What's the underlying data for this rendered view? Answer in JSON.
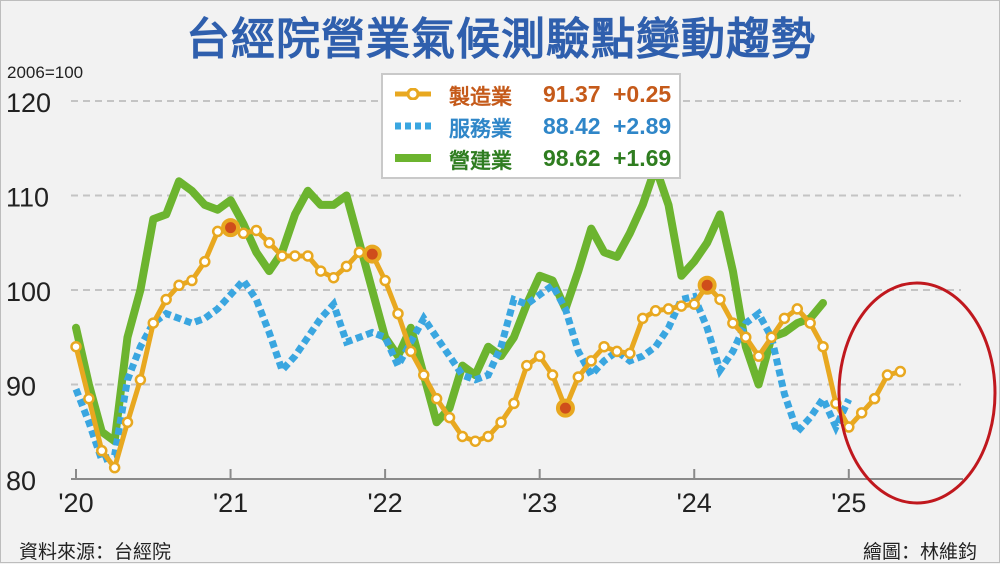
{
  "title": "台經院營業氣候測驗點變動趨勢",
  "base_note": "2006=100",
  "source": "資料來源：台經院",
  "credit": "繪圖：林維鈞",
  "colors": {
    "manufacturing": "#e8a820",
    "manufacturing_marker": "#cf4d1b",
    "services": "#3aa6e0",
    "construction": "#6cb42f",
    "grid": "#c4c4c4",
    "highlight_circle": "#c0181e",
    "mfg_text": "#c55a1a",
    "svc_text": "#2f86c8",
    "con_text": "#2f7d20"
  },
  "legend": [
    {
      "name": "製造業",
      "value": "91.37",
      "change": "+0.25"
    },
    {
      "name": "服務業",
      "value": "88.42",
      "change": "+2.89"
    },
    {
      "name": "營建業",
      "value": "98.62",
      "change": "+1.69"
    }
  ],
  "chart_data": {
    "type": "line",
    "title": "台經院營業氣候測驗點變動趨勢",
    "ylabel": "2006=100",
    "xlabel": "",
    "ylim": [
      80,
      120
    ],
    "yticks": [
      80,
      90,
      100,
      110,
      120
    ],
    "xticks": [
      "'20",
      "'21",
      "'22",
      "'23",
      "'24",
      "'25"
    ],
    "x_start": "2020-01",
    "grid": true,
    "legend_position": "top-center",
    "highlight": "circle around 2025 data",
    "series": [
      {
        "name": "製造業",
        "style": "line-with-circle-markers",
        "values": [
          94.0,
          88.5,
          83.0,
          81.2,
          86.0,
          90.5,
          96.5,
          99.0,
          100.5,
          101.0,
          103.0,
          106.2,
          106.6,
          106.0,
          106.3,
          105.0,
          103.6,
          103.6,
          103.6,
          102.0,
          101.3,
          102.5,
          104.0,
          103.8,
          101.0,
          97.5,
          93.5,
          91.0,
          88.5,
          86.5,
          84.5,
          84.0,
          84.5,
          86.0,
          88.0,
          92.0,
          93.0,
          91.0,
          87.5,
          90.8,
          92.5,
          94.0,
          93.5,
          93.3,
          97.0,
          97.8,
          98.0,
          98.3,
          98.5,
          100.5,
          99.0,
          96.5,
          95.0,
          93.0,
          95.0,
          97.0,
          98.0,
          96.5,
          94.0,
          88.0,
          85.5,
          87.0,
          88.5,
          91.0,
          91.37
        ]
      },
      {
        "name": "服務業",
        "style": "dotted",
        "values": [
          89.5,
          86.0,
          82.0,
          82.5,
          90.5,
          94.0,
          96.5,
          97.5,
          97.0,
          96.5,
          97.0,
          98.0,
          99.5,
          101.0,
          99.0,
          95.5,
          91.5,
          93.0,
          95.0,
          97.0,
          98.5,
          94.5,
          95.0,
          95.5,
          95.0,
          92.0,
          94.5,
          97.0,
          95.0,
          93.0,
          91.0,
          90.5,
          91.0,
          94.0,
          99.0,
          98.5,
          99.5,
          100.5,
          98.0,
          93.5,
          91.0,
          92.5,
          93.5,
          92.5,
          93.0,
          94.0,
          96.0,
          99.0,
          99.3,
          96.0,
          91.5,
          93.5,
          96.5,
          97.5,
          95.0,
          89.0,
          85.0,
          86.5,
          88.5,
          85.5,
          88.42
        ]
      },
      {
        "name": "營建業",
        "style": "solid-thick",
        "values": [
          96.0,
          90.0,
          85.0,
          84.0,
          95.0,
          100.0,
          107.5,
          108.0,
          111.5,
          110.5,
          109.0,
          108.5,
          109.5,
          107.0,
          104.0,
          102.0,
          104.0,
          108.0,
          110.5,
          109.0,
          109.0,
          110.0,
          105.0,
          100.0,
          95.0,
          93.0,
          96.0,
          91.0,
          86.0,
          87.5,
          92.0,
          91.0,
          94.0,
          93.0,
          95.0,
          98.5,
          101.5,
          101.0,
          98.0,
          102.0,
          106.5,
          104.0,
          103.5,
          106.0,
          109.0,
          113.0,
          109.0,
          101.5,
          103.0,
          105.0,
          108.0,
          102.0,
          94.0,
          90.0,
          95.0,
          95.5,
          96.5,
          97.0,
          98.62
        ]
      }
    ]
  }
}
